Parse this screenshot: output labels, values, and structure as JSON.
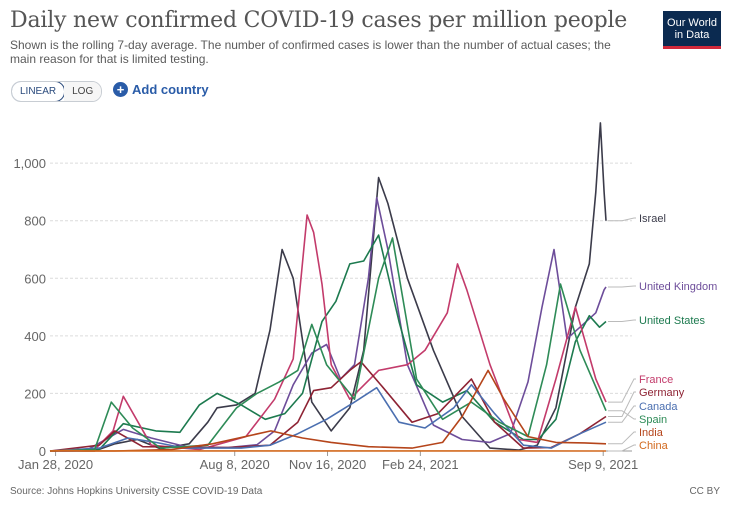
{
  "header": {
    "title": "Daily new confirmed COVID-19 cases per million people",
    "subtitle": "Shown is the rolling 7-day average. The number of confirmed cases is lower than the number of actual cases; the main reason for that is limited testing.",
    "logo_line1": "Our World",
    "logo_line2": "in Data"
  },
  "controls": {
    "linear_label": "LINEAR",
    "log_label": "LOG",
    "active_scale": "LINEAR",
    "add_country_label": "Add country",
    "add_icon": "plus-circle-icon"
  },
  "footer": {
    "source": "Source: Johns Hopkins University CSSE COVID-19 Data",
    "license": "CC BY"
  },
  "chart_data": {
    "type": "line",
    "title": "Daily new confirmed COVID-19 cases per million people",
    "xlabel": "",
    "ylabel": "",
    "x_tick_labels": [
      "Jan 28, 2020",
      "Aug 8, 2020",
      "Nov 16, 2020",
      "Feb 24, 2021",
      "Sep 9, 2021"
    ],
    "y_ticks": [
      0,
      200,
      400,
      600,
      800,
      1000
    ],
    "y_tick_labels": [
      "0",
      "200",
      "400",
      "600",
      "800",
      "1,000"
    ],
    "ylim": [
      0,
      1150
    ],
    "xlim": [
      "2020-01-22",
      "2021-09-12"
    ],
    "grid": "horizontal",
    "legend": "right end labels",
    "series": [
      {
        "name": "Israel",
        "color": "#3b3b4a",
        "x": [
          "2020-01-22",
          "2020-03-10",
          "2020-04-01",
          "2020-04-25",
          "2020-05-20",
          "2020-06-20",
          "2020-07-10",
          "2020-07-20",
          "2020-08-10",
          "2020-08-30",
          "2020-09-15",
          "2020-09-28",
          "2020-10-10",
          "2020-10-30",
          "2020-11-20",
          "2020-12-10",
          "2020-12-25",
          "2021-01-10",
          "2021-01-20",
          "2021-02-10",
          "2021-03-10",
          "2021-04-10",
          "2021-05-10",
          "2021-06-10",
          "2021-06-30",
          "2021-07-20",
          "2021-08-10",
          "2021-08-25",
          "2021-09-01",
          "2021-09-06",
          "2021-09-10",
          "2021-09-12"
        ],
        "y": [
          0,
          0,
          25,
          40,
          8,
          25,
          100,
          150,
          160,
          200,
          420,
          700,
          600,
          170,
          70,
          150,
          350,
          950,
          860,
          600,
          350,
          120,
          10,
          3,
          20,
          150,
          500,
          650,
          900,
          1140,
          900,
          800
        ]
      },
      {
        "name": "United Kingdom",
        "color": "#6d4d9a",
        "x": [
          "2020-01-22",
          "2020-03-01",
          "2020-04-10",
          "2020-05-10",
          "2020-06-20",
          "2020-08-01",
          "2020-09-01",
          "2020-09-20",
          "2020-10-10",
          "2020-10-30",
          "2020-11-15",
          "2020-11-30",
          "2020-12-15",
          "2020-12-30",
          "2021-01-08",
          "2021-01-20",
          "2021-02-10",
          "2021-03-10",
          "2021-04-10",
          "2021-05-10",
          "2021-06-01",
          "2021-06-20",
          "2021-07-05",
          "2021-07-18",
          "2021-08-01",
          "2021-08-15",
          "2021-09-01",
          "2021-09-10",
          "2021-09-12"
        ],
        "y": [
          0,
          2,
          75,
          45,
          12,
          12,
          22,
          70,
          230,
          340,
          370,
          250,
          300,
          600,
          880,
          700,
          300,
          90,
          40,
          30,
          60,
          240,
          500,
          700,
          390,
          430,
          480,
          560,
          570
        ]
      },
      {
        "name": "United States",
        "color": "#1d7a4f",
        "x": [
          "2020-01-22",
          "2020-03-15",
          "2020-04-10",
          "2020-05-15",
          "2020-06-10",
          "2020-07-01",
          "2020-07-20",
          "2020-08-15",
          "2020-09-10",
          "2020-10-01",
          "2020-10-20",
          "2020-11-10",
          "2020-11-25",
          "2020-12-10",
          "2020-12-25",
          "2021-01-10",
          "2021-02-01",
          "2021-02-20",
          "2021-03-20",
          "2021-04-15",
          "2021-05-15",
          "2021-06-15",
          "2021-07-01",
          "2021-07-20",
          "2021-08-10",
          "2021-08-25",
          "2021-09-05",
          "2021-09-12"
        ],
        "y": [
          0,
          5,
          95,
          70,
          65,
          160,
          200,
          160,
          110,
          130,
          200,
          450,
          520,
          650,
          660,
          750,
          450,
          230,
          170,
          210,
          100,
          40,
          40,
          110,
          380,
          470,
          430,
          450
        ]
      },
      {
        "name": "France",
        "color": "#c33b6b",
        "x": [
          "2020-01-22",
          "2020-03-10",
          "2020-03-30",
          "2020-04-10",
          "2020-05-10",
          "2020-07-01",
          "2020-08-20",
          "2020-09-20",
          "2020-10-10",
          "2020-10-25",
          "2020-11-01",
          "2020-11-10",
          "2020-11-20",
          "2020-12-10",
          "2021-01-10",
          "2021-02-10",
          "2021-03-01",
          "2021-03-25",
          "2021-04-05",
          "2021-04-15",
          "2021-05-10",
          "2021-06-10",
          "2021-06-30",
          "2021-07-20",
          "2021-08-10",
          "2021-09-01",
          "2021-09-12"
        ],
        "y": [
          0,
          5,
          70,
          190,
          20,
          5,
          50,
          180,
          320,
          820,
          760,
          580,
          300,
          180,
          280,
          300,
          350,
          480,
          650,
          560,
          300,
          40,
          30,
          250,
          500,
          250,
          170
        ]
      },
      {
        "name": "Germany",
        "color": "#8e2334",
        "x": [
          "2020-01-22",
          "2020-03-15",
          "2020-04-01",
          "2020-05-01",
          "2020-08-01",
          "2020-09-15",
          "2020-10-15",
          "2020-11-01",
          "2020-11-20",
          "2020-12-10",
          "2020-12-22",
          "2021-01-15",
          "2021-02-15",
          "2021-03-15",
          "2021-04-20",
          "2021-05-15",
          "2021-06-15",
          "2021-07-15",
          "2021-08-15",
          "2021-09-12"
        ],
        "y": [
          0,
          20,
          70,
          15,
          12,
          20,
          100,
          210,
          220,
          280,
          310,
          220,
          100,
          130,
          250,
          100,
          10,
          12,
          60,
          120
        ]
      },
      {
        "name": "Canada",
        "color": "#4b6fb0",
        "x": [
          "2020-01-22",
          "2020-03-15",
          "2020-04-15",
          "2020-05-15",
          "2020-06-15",
          "2020-08-15",
          "2020-09-15",
          "2020-10-15",
          "2020-11-15",
          "2020-12-15",
          "2021-01-08",
          "2021-02-01",
          "2021-03-01",
          "2021-04-01",
          "2021-04-20",
          "2021-05-15",
          "2021-06-15",
          "2021-07-15",
          "2021-08-15",
          "2021-09-12"
        ],
        "y": [
          0,
          10,
          45,
          30,
          10,
          10,
          20,
          60,
          110,
          170,
          220,
          100,
          80,
          150,
          230,
          130,
          20,
          10,
          60,
          100
        ]
      },
      {
        "name": "Spain",
        "color": "#2e8b57",
        "x": [
          "2020-01-22",
          "2020-03-10",
          "2020-03-28",
          "2020-04-20",
          "2020-05-20",
          "2020-07-10",
          "2020-08-10",
          "2020-09-01",
          "2020-09-25",
          "2020-10-15",
          "2020-10-30",
          "2020-11-15",
          "2020-12-15",
          "2021-01-10",
          "2021-01-25",
          "2021-02-20",
          "2021-03-20",
          "2021-04-20",
          "2021-05-20",
          "2021-06-20",
          "2021-07-10",
          "2021-07-25",
          "2021-08-15",
          "2021-09-12"
        ],
        "y": [
          0,
          5,
          170,
          80,
          10,
          20,
          150,
          200,
          240,
          280,
          440,
          300,
          180,
          600,
          740,
          250,
          110,
          170,
          100,
          50,
          300,
          580,
          350,
          140
        ]
      },
      {
        "name": "India",
        "color": "#b5451b",
        "x": [
          "2020-01-22",
          "2020-04-01",
          "2020-06-01",
          "2020-07-15",
          "2020-09-16",
          "2020-10-20",
          "2020-11-20",
          "2020-12-30",
          "2021-02-15",
          "2021-03-20",
          "2021-04-10",
          "2021-05-08",
          "2021-05-25",
          "2021-06-20",
          "2021-07-20",
          "2021-08-20",
          "2021-09-12"
        ],
        "y": [
          0,
          0,
          5,
          25,
          70,
          45,
          30,
          15,
          10,
          30,
          120,
          280,
          180,
          50,
          30,
          28,
          25
        ]
      },
      {
        "name": "China",
        "color": "#d2691e",
        "x": [
          "2020-01-22",
          "2020-02-10",
          "2020-03-01",
          "2021-09-12"
        ],
        "y": [
          0,
          2,
          0.5,
          0
        ]
      }
    ]
  }
}
